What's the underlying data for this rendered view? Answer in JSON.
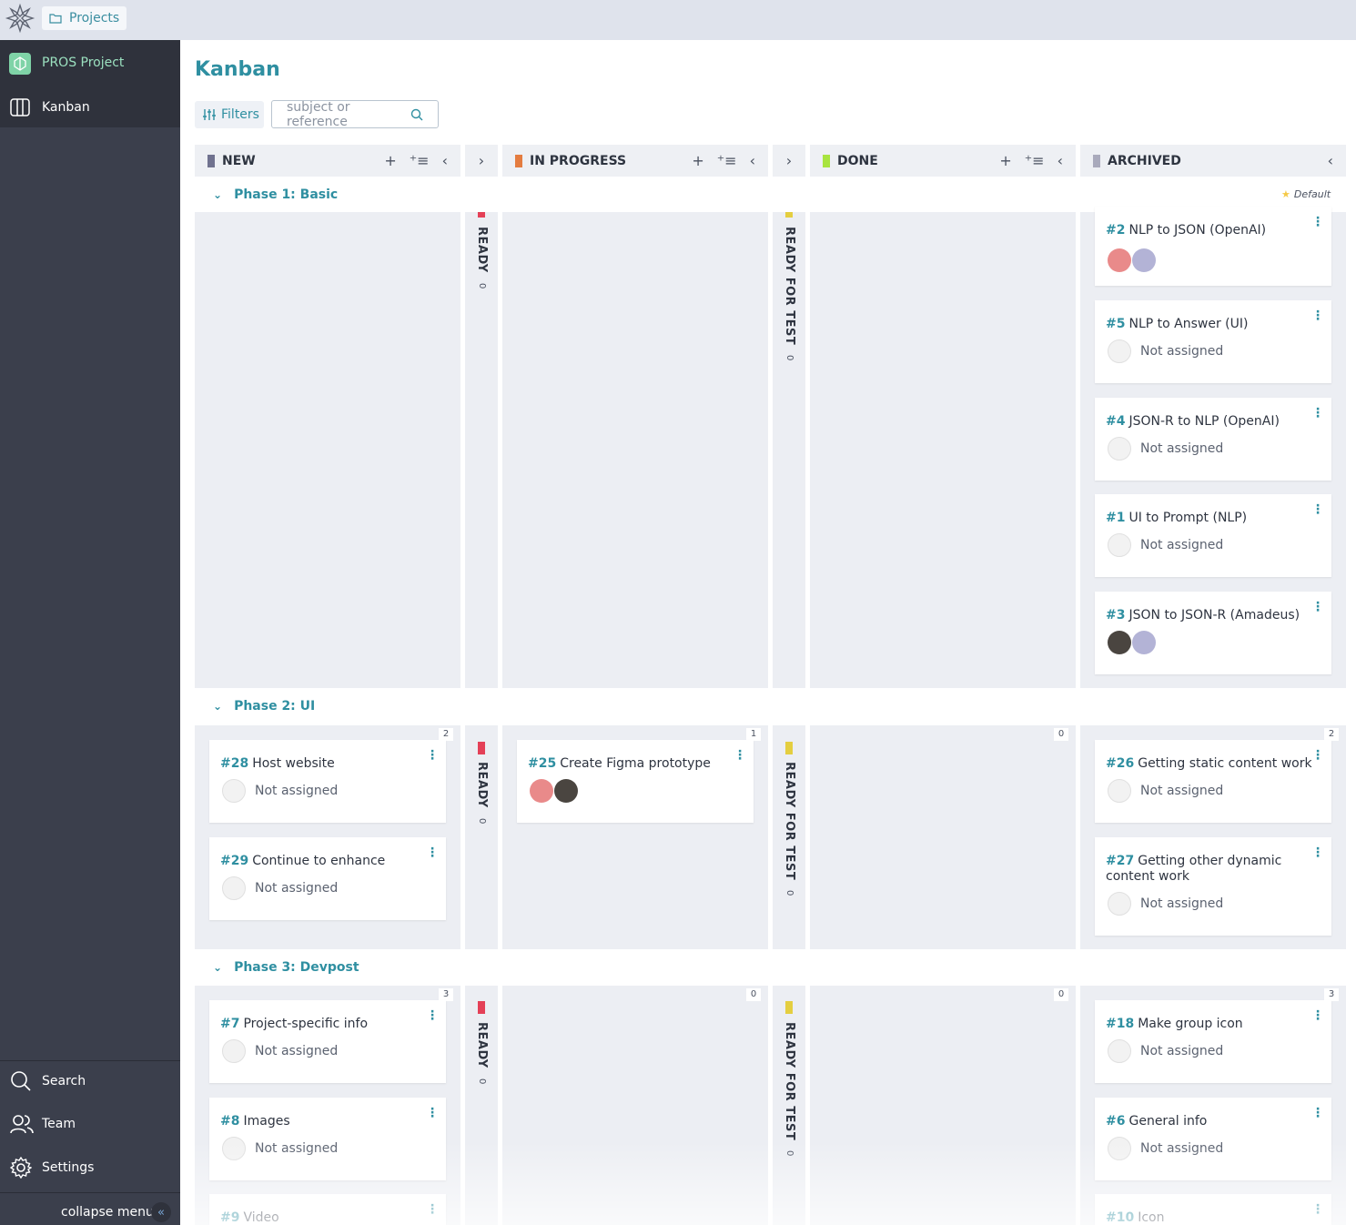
{
  "topbar": {
    "projects_label": "Projects"
  },
  "sidebar": {
    "project_name": "PROS Project",
    "items": [
      {
        "label": "Kanban"
      }
    ],
    "bottom": [
      {
        "label": "Search"
      },
      {
        "label": "Team"
      },
      {
        "label": "Settings"
      }
    ],
    "collapse_label": "collapse menu"
  },
  "page": {
    "title": "Kanban",
    "filters_label": "Filters",
    "search_placeholder": "subject or reference"
  },
  "columns": [
    {
      "name": "NEW",
      "color": "#70728f"
    },
    {
      "name": "IN PROGRESS",
      "color": "#e47c40"
    },
    {
      "name": "DONE",
      "color": "#a8e440"
    },
    {
      "name": "ARCHIVED",
      "color": "#a9aabc"
    }
  ],
  "folded_columns": [
    {
      "name": "READY",
      "color": "#e44057",
      "count": "0"
    },
    {
      "name": "READY FOR TEST",
      "color": "#e4ce40",
      "count": "0"
    }
  ],
  "default_label": "Default",
  "swimlanes": [
    {
      "title": "Phase 1: Basic",
      "counts": {},
      "new": [],
      "in_progress": [],
      "done": [],
      "archived": [
        {
          "ref": "#2",
          "title": "NLP to JSON (OpenAI)",
          "assignee": ""
        },
        {
          "ref": "#5",
          "title": "NLP to Answer (UI)",
          "assignee": "Not assigned"
        },
        {
          "ref": "#4",
          "title": "JSON-R to NLP (OpenAI)",
          "assignee": "Not assigned"
        },
        {
          "ref": "#1",
          "title": "UI to Prompt (NLP)",
          "assignee": "Not assigned"
        },
        {
          "ref": "#3",
          "title": "JSON to JSON-R (Amadeus)",
          "assignee": ""
        }
      ]
    },
    {
      "title": "Phase 2: UI",
      "counts": {
        "new": "2",
        "in_progress": "1",
        "done": "0",
        "archived": "2"
      },
      "new": [
        {
          "ref": "#28",
          "title": "Host website",
          "assignee": "Not assigned"
        },
        {
          "ref": "#29",
          "title": "Continue to enhance",
          "assignee": "Not assigned"
        }
      ],
      "in_progress": [
        {
          "ref": "#25",
          "title": "Create Figma prototype",
          "assignee": ""
        }
      ],
      "archived": [
        {
          "ref": "#26",
          "title": "Getting static content work",
          "assignee": "Not assigned"
        },
        {
          "ref": "#27",
          "title": "Getting other dynamic content work",
          "assignee": "Not assigned"
        }
      ]
    },
    {
      "title": "Phase 3: Devpost",
      "counts": {
        "new": "3",
        "in_progress": "0",
        "done": "0",
        "archived": "3"
      },
      "new": [
        {
          "ref": "#7",
          "title": "Project-specific info",
          "assignee": "Not assigned"
        },
        {
          "ref": "#8",
          "title": "Images",
          "assignee": "Not assigned"
        },
        {
          "ref": "#9",
          "title": "Video",
          "assignee": ""
        }
      ],
      "archived": [
        {
          "ref": "#18",
          "title": "Make group icon",
          "assignee": "Not assigned"
        },
        {
          "ref": "#6",
          "title": "General info",
          "assignee": "Not assigned"
        },
        {
          "ref": "#10",
          "title": "Icon",
          "assignee": ""
        }
      ]
    }
  ],
  "icons": {
    "logo": "taiga-logo-icon",
    "folder": "folder-icon",
    "kanban": "kanban-board-icon",
    "search": "search-icon",
    "team": "team-icon",
    "settings": "gear-icon",
    "filters": "filters-icon",
    "add": "plus-icon",
    "bulk": "bulk-add-icon",
    "fold": "chevron-left-icon",
    "unfold": "chevron-right-icon",
    "expand": "chevron-down-icon",
    "menu": "kebab-menu-icon",
    "star": "star-icon",
    "double_chevron": "double-chevron-left-icon"
  }
}
